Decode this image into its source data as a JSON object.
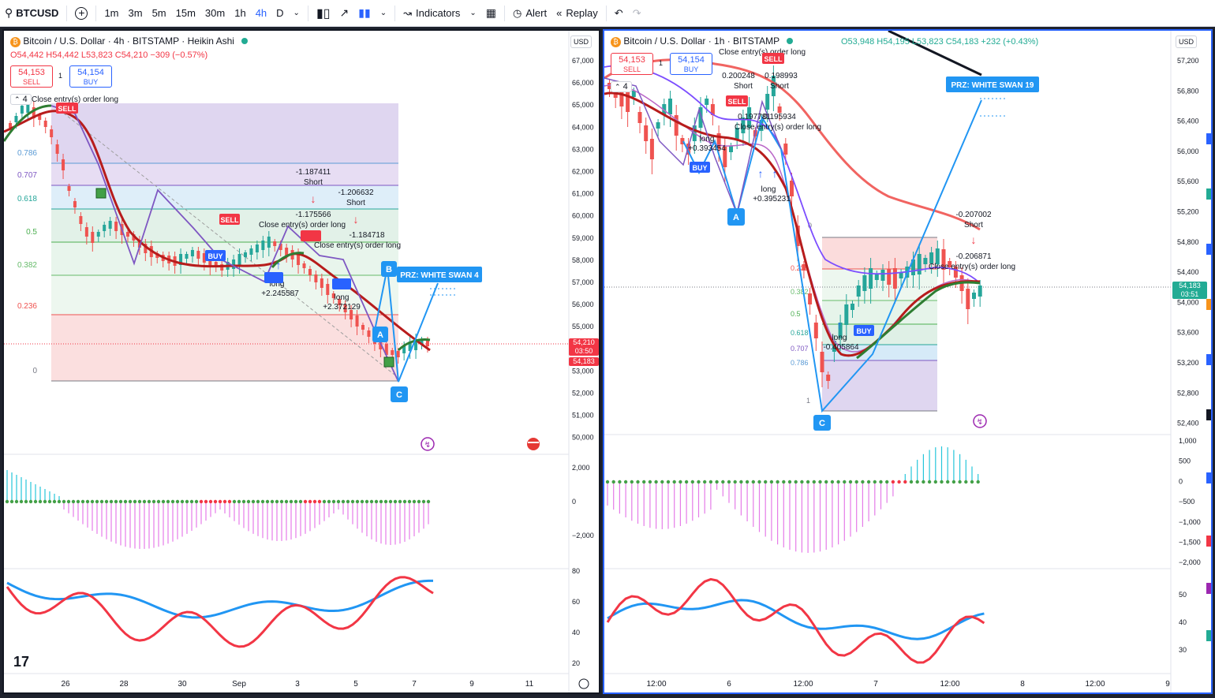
{
  "toolbar": {
    "symbol": "BTCUSD",
    "intervals": [
      "1m",
      "3m",
      "5m",
      "15m",
      "30m",
      "1h",
      "4h",
      "D"
    ],
    "active_interval": "4h",
    "indicators_label": "Indicators",
    "alert_label": "Alert",
    "replay_label": "Replay"
  },
  "left": {
    "title": "Bitcoin / U.S. Dollar · 4h · BITSTAMP · Heikin Ashi",
    "ohlc": {
      "o": "O54,442",
      "h": "H54,442",
      "l": "L53,823",
      "c": "C54,210",
      "chg": "−309 (−0.57%)"
    },
    "sell_price": "54,153",
    "sell_label": "SELL",
    "buy_price": "54,154",
    "buy_label": "BUY",
    "spread": "1",
    "currency": "USD",
    "collapse_count": "4",
    "price_ticks": [
      "67,000",
      "66,000",
      "65,000",
      "64,000",
      "63,000",
      "62,000",
      "61,000",
      "60,000",
      "59,000",
      "58,000",
      "57,000",
      "56,000",
      "55,000",
      "54,000",
      "53,000",
      "52,000",
      "51,000",
      "50,000"
    ],
    "last_price": "54,210",
    "countdown": "03:50",
    "bid": "54,183",
    "fib_levels": [
      "0.786",
      "0.707",
      "0.618",
      "0.5",
      "0.382",
      "0.236",
      "0"
    ],
    "date_ticks": [
      "26",
      "28",
      "30",
      "Sep",
      "3",
      "5",
      "7",
      "9",
      "11"
    ],
    "osc_ticks": [
      "2,000",
      "0",
      "−2,000"
    ],
    "rsi_ticks": [
      "80",
      "60",
      "40",
      "20"
    ],
    "annotations": {
      "short1": "-1.187411",
      "short1_lbl": "Short",
      "short2": "-1.206632",
      "short2_lbl": "Short",
      "close1": "-1.175566",
      "close1_lbl": "Close entry(s) order long",
      "close2": "-1.184718",
      "close2_lbl": "Close entry(s) order long",
      "long1": "long",
      "long1_val": "+2.245587",
      "long2": "long",
      "long2_val": "+2.372129",
      "top_close": "Close entry(s) order long",
      "prz": "PRZ: WHITE SWAN 4",
      "sell_tag": "SELL",
      "buy_tag": "BUY"
    },
    "pattern_points": [
      "A",
      "B",
      "C"
    ]
  },
  "right": {
    "title": "Bitcoin / U.S. Dollar · 1h · BITSTAMP",
    "ohlc": {
      "o": "O53,948",
      "h": "H54,195",
      "l": "L53,823",
      "c": "C54,183",
      "chg": "+232 (+0.43%)"
    },
    "sell_price": "54,153",
    "sell_label": "SELL",
    "buy_price": "54,154",
    "buy_label": "BUY",
    "spread": "1",
    "currency": "USD",
    "collapse_count": "4",
    "price_ticks": [
      "57,200",
      "56,800",
      "56,400",
      "56,000",
      "55,600",
      "55,200",
      "54,800",
      "54,400",
      "54,000",
      "53,600",
      "53,200",
      "52,800",
      "52,400"
    ],
    "last_price": "54,183",
    "countdown": "03:51",
    "fib_levels": [
      "0",
      "0.236",
      "0.382",
      "0.5",
      "0.618",
      "0.707",
      "0.786",
      "1"
    ],
    "date_ticks": [
      "12:00",
      "6",
      "12:00",
      "7",
      "12:00",
      "8",
      "12:00",
      "9"
    ],
    "osc_ticks": [
      "1,000",
      "500",
      "0",
      "−500",
      "−1,000",
      "−1,500",
      "−2,000"
    ],
    "rsi_ticks": [
      "50",
      "40",
      "30"
    ],
    "annotations": {
      "top_close": "Close entry(s) order long",
      "short1": "0.200248",
      "short1b": "0.198993",
      "short_lbl": "Short",
      "close_a": "0.197781",
      "close_b": "0.195934",
      "close_lbl": "Close entry(s) order long",
      "long_val": "+0.393454",
      "long_lbl": "long",
      "long2_val": "+0.395231",
      "short2": "-0.207002",
      "short2_lbl": "Short",
      "close2": "-0.206871",
      "close2_lbl": "Close entry(s) order long",
      "long3": "long",
      "long3_val": "-0.405864",
      "prz": "PRZ: WHITE SWAN 19",
      "sell_tag": "SELL",
      "buy_tag": "BUY"
    },
    "pattern_points": [
      "A",
      "C"
    ]
  }
}
